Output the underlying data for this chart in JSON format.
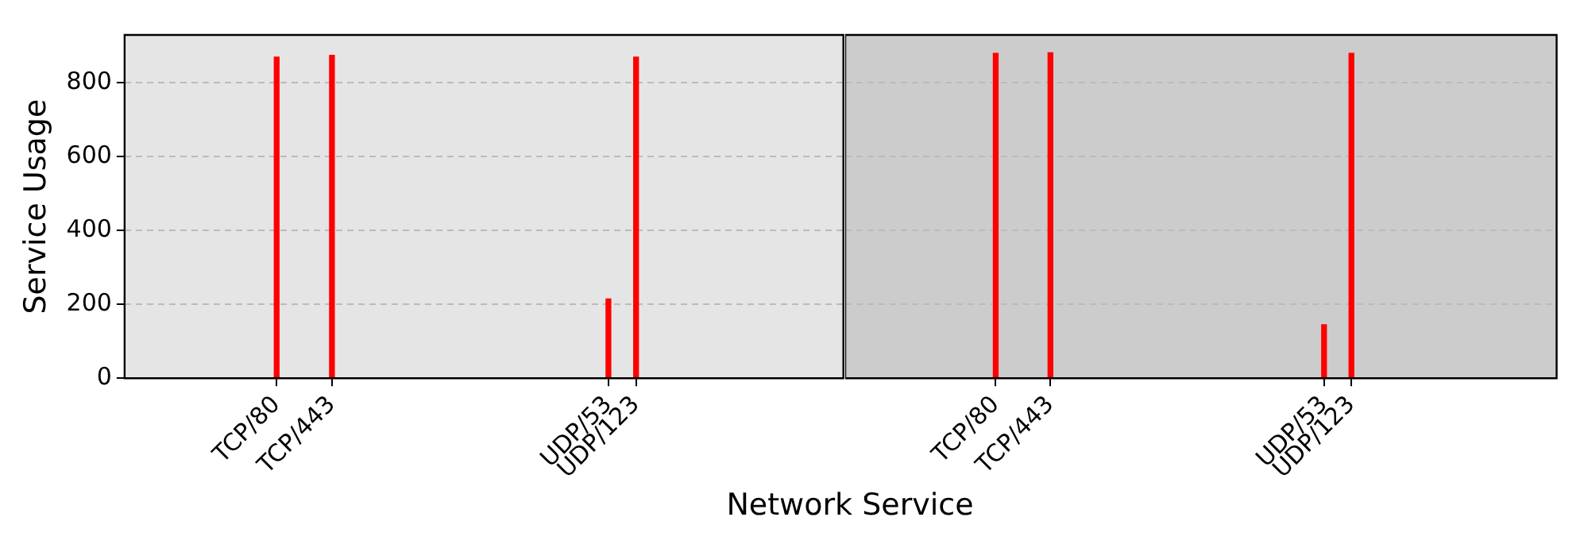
{
  "chart_data": [
    {
      "type": "bar",
      "xlabel": "Network Service",
      "ylabel": "Service Usage",
      "categories": [
        null,
        null,
        null,
        null,
        null,
        "TCP/80",
        null,
        "TCP/443",
        null,
        null,
        null,
        null,
        null,
        null,
        null,
        null,
        null,
        "UDP/53",
        "UDP/123",
        null,
        null,
        null,
        null,
        null,
        null,
        null
      ],
      "ylim": [
        0,
        930
      ],
      "yticks": [
        0,
        200,
        400,
        600,
        800
      ],
      "grid": "y",
      "series": [
        {
          "color": "#ff0000",
          "values": [
            null,
            null,
            null,
            null,
            null,
            870,
            null,
            875,
            null,
            null,
            null,
            null,
            null,
            null,
            null,
            null,
            null,
            215,
            870,
            null,
            null,
            null,
            null,
            null,
            null,
            null
          ]
        }
      ]
    },
    {
      "type": "bar",
      "categories": [
        null,
        null,
        null,
        null,
        null,
        "TCP/80",
        null,
        "TCP/443",
        null,
        null,
        null,
        null,
        null,
        null,
        null,
        null,
        null,
        "UDP/53",
        "UDP/123",
        null,
        null,
        null,
        null,
        null,
        null,
        null
      ],
      "ylim": [
        0,
        930
      ],
      "yticks": [
        0,
        200,
        400,
        600,
        800
      ],
      "grid": "y",
      "tick_labels": "x",
      "series": [
        {
          "color": "#ff0000",
          "values": [
            null,
            null,
            null,
            null,
            null,
            880,
            null,
            882,
            null,
            null,
            null,
            null,
            null,
            null,
            null,
            null,
            null,
            145,
            880,
            null,
            null,
            null,
            null,
            null,
            null,
            null
          ]
        }
      ]
    }
  ]
}
